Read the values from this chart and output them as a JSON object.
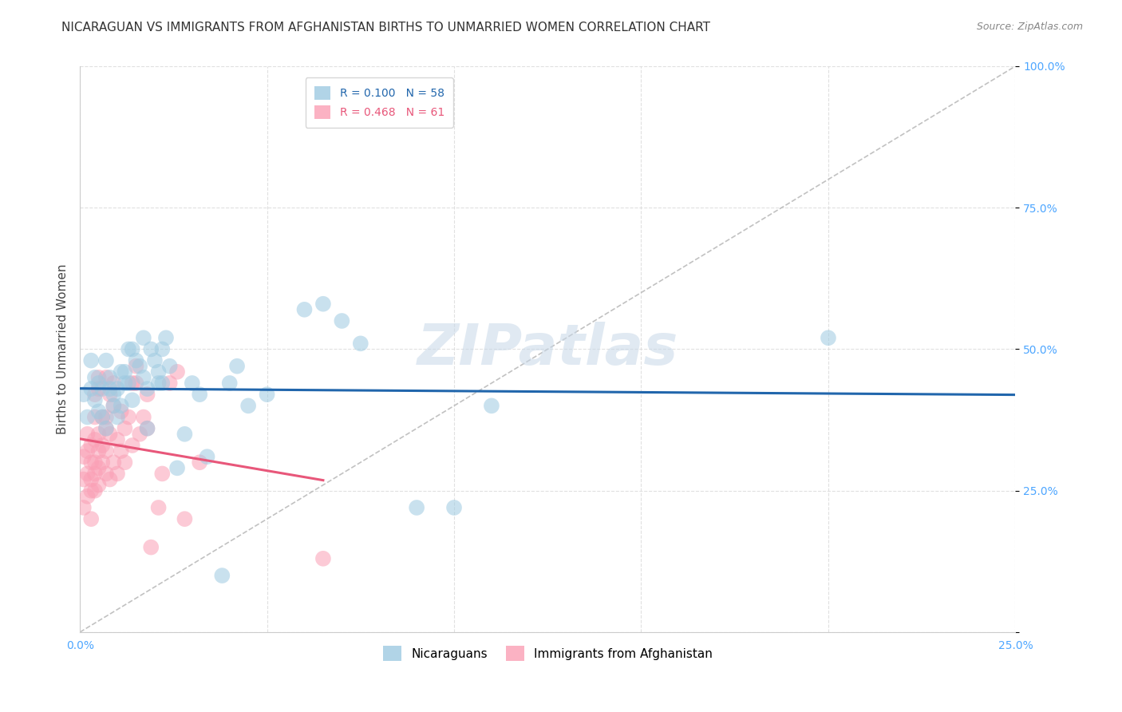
{
  "title": "NICARAGUAN VS IMMIGRANTS FROM AFGHANISTAN BIRTHS TO UNMARRIED WOMEN CORRELATION CHART",
  "source": "Source: ZipAtlas.com",
  "ylabel": "Births to Unmarried Women",
  "x_ticks": [
    0.0,
    0.05,
    0.1,
    0.15,
    0.2,
    0.25
  ],
  "x_tick_labels": [
    "0.0%",
    "",
    "",
    "",
    "",
    "25.0%"
  ],
  "y_ticks": [
    0.0,
    0.25,
    0.5,
    0.75,
    1.0
  ],
  "y_tick_labels": [
    "",
    "25.0%",
    "50.0%",
    "75.0%",
    "100.0%"
  ],
  "xlim": [
    0.0,
    0.25
  ],
  "ylim": [
    0.0,
    1.0
  ],
  "blue_color": "#9ecae1",
  "pink_color": "#fa9fb5",
  "blue_line_color": "#2166ac",
  "pink_line_color": "#e8577a",
  "diagonal_color": "#bbbbbb",
  "watermark": "ZIPatlas",
  "background_color": "#ffffff",
  "grid_color": "#dddddd",
  "axis_color": "#4da6ff",
  "title_fontsize": 11,
  "label_fontsize": 11,
  "tick_fontsize": 10,
  "legend_fontsize": 10,
  "watermark_color": "#c8d8e8",
  "watermark_fontsize": 52,
  "blue_scatter": [
    [
      0.001,
      0.42
    ],
    [
      0.002,
      0.38
    ],
    [
      0.003,
      0.43
    ],
    [
      0.003,
      0.48
    ],
    [
      0.004,
      0.41
    ],
    [
      0.004,
      0.45
    ],
    [
      0.005,
      0.44
    ],
    [
      0.005,
      0.39
    ],
    [
      0.006,
      0.43
    ],
    [
      0.006,
      0.38
    ],
    [
      0.007,
      0.36
    ],
    [
      0.007,
      0.48
    ],
    [
      0.008,
      0.45
    ],
    [
      0.008,
      0.43
    ],
    [
      0.009,
      0.42
    ],
    [
      0.009,
      0.4
    ],
    [
      0.01,
      0.43
    ],
    [
      0.01,
      0.38
    ],
    [
      0.011,
      0.4
    ],
    [
      0.011,
      0.46
    ],
    [
      0.012,
      0.46
    ],
    [
      0.012,
      0.44
    ],
    [
      0.013,
      0.44
    ],
    [
      0.013,
      0.5
    ],
    [
      0.014,
      0.41
    ],
    [
      0.014,
      0.5
    ],
    [
      0.015,
      0.48
    ],
    [
      0.016,
      0.47
    ],
    [
      0.017,
      0.45
    ],
    [
      0.017,
      0.52
    ],
    [
      0.018,
      0.43
    ],
    [
      0.018,
      0.36
    ],
    [
      0.019,
      0.5
    ],
    [
      0.02,
      0.48
    ],
    [
      0.021,
      0.46
    ],
    [
      0.021,
      0.44
    ],
    [
      0.022,
      0.44
    ],
    [
      0.022,
      0.5
    ],
    [
      0.023,
      0.52
    ],
    [
      0.024,
      0.47
    ],
    [
      0.026,
      0.29
    ],
    [
      0.028,
      0.35
    ],
    [
      0.03,
      0.44
    ],
    [
      0.032,
      0.42
    ],
    [
      0.034,
      0.31
    ],
    [
      0.038,
      0.1
    ],
    [
      0.04,
      0.44
    ],
    [
      0.042,
      0.47
    ],
    [
      0.045,
      0.4
    ],
    [
      0.05,
      0.42
    ],
    [
      0.06,
      0.57
    ],
    [
      0.065,
      0.58
    ],
    [
      0.07,
      0.55
    ],
    [
      0.075,
      0.51
    ],
    [
      0.09,
      0.22
    ],
    [
      0.1,
      0.22
    ],
    [
      0.11,
      0.4
    ],
    [
      0.2,
      0.52
    ]
  ],
  "pink_scatter": [
    [
      0.001,
      0.27
    ],
    [
      0.001,
      0.31
    ],
    [
      0.001,
      0.22
    ],
    [
      0.002,
      0.28
    ],
    [
      0.002,
      0.32
    ],
    [
      0.002,
      0.24
    ],
    [
      0.002,
      0.35
    ],
    [
      0.003,
      0.27
    ],
    [
      0.003,
      0.3
    ],
    [
      0.003,
      0.33
    ],
    [
      0.003,
      0.2
    ],
    [
      0.003,
      0.25
    ],
    [
      0.004,
      0.25
    ],
    [
      0.004,
      0.28
    ],
    [
      0.004,
      0.34
    ],
    [
      0.004,
      0.38
    ],
    [
      0.004,
      0.42
    ],
    [
      0.004,
      0.3
    ],
    [
      0.005,
      0.26
    ],
    [
      0.005,
      0.29
    ],
    [
      0.005,
      0.35
    ],
    [
      0.005,
      0.32
    ],
    [
      0.005,
      0.43
    ],
    [
      0.005,
      0.45
    ],
    [
      0.006,
      0.3
    ],
    [
      0.006,
      0.33
    ],
    [
      0.006,
      0.38
    ],
    [
      0.007,
      0.28
    ],
    [
      0.007,
      0.38
    ],
    [
      0.007,
      0.45
    ],
    [
      0.007,
      0.36
    ],
    [
      0.007,
      0.32
    ],
    [
      0.008,
      0.27
    ],
    [
      0.008,
      0.35
    ],
    [
      0.008,
      0.42
    ],
    [
      0.009,
      0.3
    ],
    [
      0.009,
      0.4
    ],
    [
      0.009,
      0.44
    ],
    [
      0.01,
      0.28
    ],
    [
      0.01,
      0.34
    ],
    [
      0.011,
      0.32
    ],
    [
      0.011,
      0.39
    ],
    [
      0.012,
      0.3
    ],
    [
      0.012,
      0.36
    ],
    [
      0.013,
      0.38
    ],
    [
      0.014,
      0.33
    ],
    [
      0.014,
      0.44
    ],
    [
      0.015,
      0.44
    ],
    [
      0.015,
      0.47
    ],
    [
      0.016,
      0.35
    ],
    [
      0.017,
      0.38
    ],
    [
      0.018,
      0.36
    ],
    [
      0.018,
      0.42
    ],
    [
      0.019,
      0.15
    ],
    [
      0.021,
      0.22
    ],
    [
      0.022,
      0.28
    ],
    [
      0.024,
      0.44
    ],
    [
      0.026,
      0.46
    ],
    [
      0.028,
      0.2
    ],
    [
      0.032,
      0.3
    ],
    [
      0.065,
      0.13
    ]
  ]
}
